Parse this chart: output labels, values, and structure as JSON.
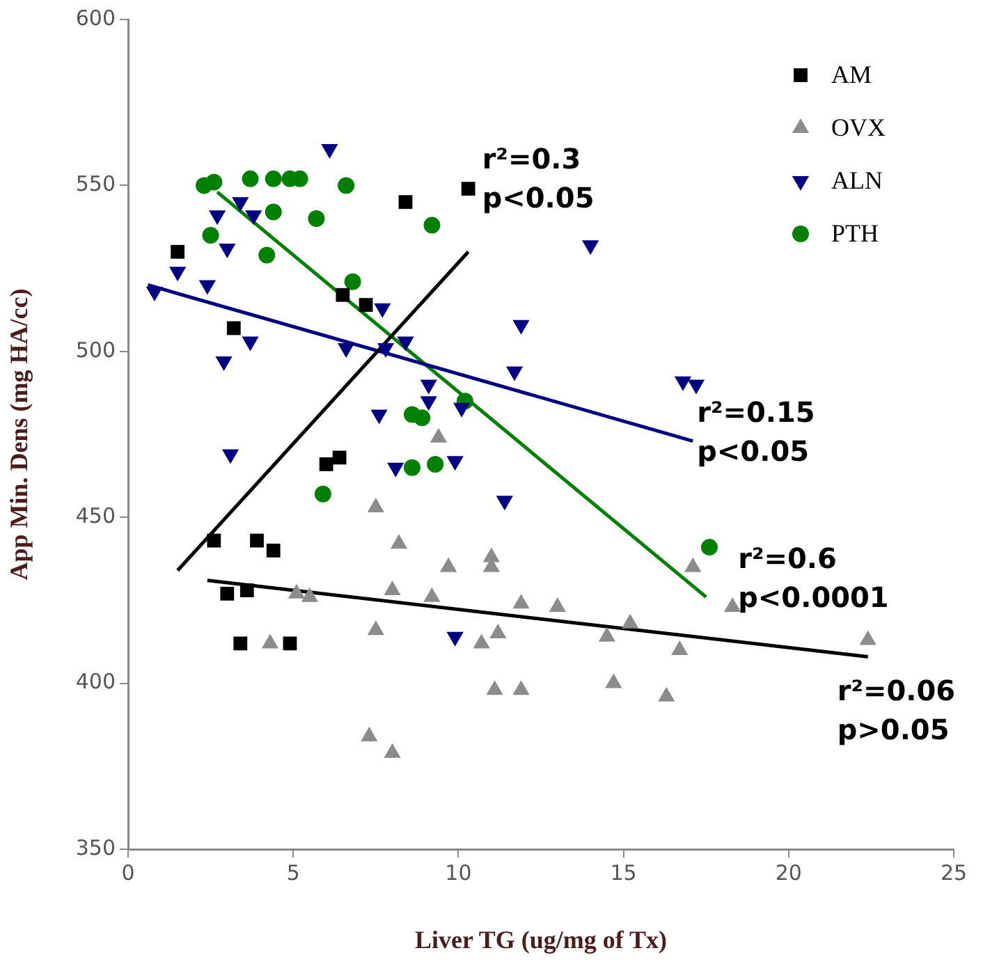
{
  "chart_data": {
    "type": "scatter",
    "xlabel": "Liver TG (ug/mg of Tx)",
    "ylabel": "App Min. Dens (mg HA/cc)",
    "xlim": [
      0,
      25
    ],
    "xticks": [
      0,
      5,
      10,
      15,
      20,
      25
    ],
    "ylim": [
      350,
      600
    ],
    "yticks": [
      350,
      400,
      450,
      500,
      550,
      600
    ],
    "grid": false,
    "legend": "top right",
    "series": [
      {
        "name": "AM",
        "color": "#000000",
        "marker": "square",
        "x": [
          1.5,
          3.2,
          6.5,
          7.2,
          8.4,
          10.3,
          6.0,
          6.4,
          2.6,
          3.9,
          4.4,
          3.0,
          3.6,
          3.4,
          4.9
        ],
        "values": [
          530,
          507,
          517,
          514,
          545,
          549,
          466,
          468,
          443,
          443,
          440,
          427,
          428,
          412,
          412
        ]
      },
      {
        "name": "OVX",
        "color": "#8c8c8c",
        "marker": "triangle",
        "x": [
          7.5,
          8.2,
          9.7,
          11.0,
          11.0,
          5.1,
          5.5,
          8.0,
          9.2,
          11.9,
          7.5,
          4.3,
          10.7,
          11.2,
          11.1,
          11.9,
          7.3,
          8.0,
          9.4,
          13.0,
          15.2,
          14.5,
          16.7,
          14.7,
          16.3,
          17.1,
          18.3,
          22.4
        ],
        "values": [
          453,
          442,
          435,
          438,
          435,
          427,
          426,
          428,
          426,
          424,
          416,
          412,
          412,
          415,
          398,
          398,
          384,
          379,
          474,
          423,
          418,
          414,
          410,
          400,
          396,
          435,
          423,
          413
        ]
      },
      {
        "name": "ALN",
        "color": "#000080",
        "marker": "triangle-down",
        "x": [
          6.1,
          2.7,
          3.4,
          3.8,
          1.5,
          3.0,
          2.4,
          0.8,
          3.7,
          2.9,
          6.6,
          7.8,
          8.4,
          7.7,
          9.1,
          9.1,
          10.1,
          7.6,
          11.9,
          11.7,
          3.1,
          8.1,
          9.9,
          14.0,
          16.8,
          17.2,
          11.4,
          9.9
        ],
        "values": [
          561,
          541,
          545,
          541,
          524,
          531,
          520,
          518,
          503,
          497,
          501,
          501,
          503,
          513,
          490,
          485,
          483,
          481,
          508,
          494,
          469,
          465,
          467,
          532,
          491,
          490,
          455,
          414
        ]
      },
      {
        "name": "PTH",
        "color": "#008000",
        "marker": "circle",
        "x": [
          2.3,
          2.6,
          3.7,
          4.4,
          4.9,
          5.2,
          6.6,
          4.4,
          5.7,
          2.5,
          4.2,
          9.2,
          6.8,
          10.2,
          8.6,
          8.9,
          8.6,
          9.3,
          5.9,
          17.6
        ],
        "values": [
          550,
          551,
          552,
          552,
          552,
          552,
          550,
          542,
          540,
          535,
          529,
          538,
          521,
          485,
          481,
          480,
          465,
          466,
          457,
          441
        ]
      },
      {
        "type": "line",
        "color": "#000000",
        "marker": "none",
        "x": [
          1.5,
          10.3
        ],
        "values": [
          434,
          530
        ]
      },
      {
        "type": "line",
        "color": "#000080",
        "marker": "none",
        "x": [
          0.6,
          17.1
        ],
        "values": [
          520,
          473
        ]
      },
      {
        "type": "line",
        "color": "#008000",
        "marker": "none",
        "x": [
          2.7,
          17.5
        ],
        "values": [
          548,
          426
        ]
      },
      {
        "type": "line",
        "color": "#000000",
        "marker": "none",
        "x": [
          2.4,
          22.4
        ],
        "values": [
          431,
          408
        ]
      }
    ],
    "annotations": [
      "r²=0.3\np<0.05",
      "r²=0.15\np<0.05",
      "r²=0.6\np<0.0001",
      "r²=0.06\np>0.05"
    ]
  }
}
